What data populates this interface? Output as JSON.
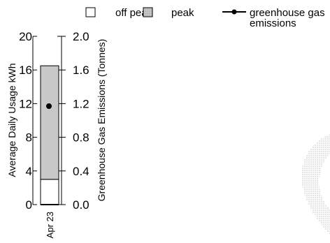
{
  "legend": {
    "off_peak_label": "off peak",
    "peak_label": "peak",
    "ghg_label_line1": "greenhouse gas",
    "ghg_label_line2": "emissions"
  },
  "colors": {
    "off_peak_fill": "#ffffff",
    "peak_fill": "#c8c8c8",
    "line": "#000000"
  },
  "chart_data": {
    "type": "bar",
    "categories": [
      "Apr 23"
    ],
    "series": [
      {
        "name": "off peak",
        "values": [
          3
        ]
      },
      {
        "name": "peak",
        "values": [
          13.5
        ]
      },
      {
        "name": "greenhouse gas emissions",
        "values": [
          1.17
        ],
        "axis": "right"
      }
    ],
    "stacked": true,
    "ylabel": "Average Daily Usage kWh",
    "y2label": "Greenhouse Gas Emissions (Tonnes)",
    "ylim": [
      0,
      20
    ],
    "y2lim": [
      0,
      2.0
    ],
    "yticks": [
      "0",
      "4",
      "8",
      "12",
      "16",
      "20"
    ],
    "y2ticks": [
      "0.0",
      "0.4",
      "0.8",
      "1.2",
      "1.6",
      "2.0"
    ],
    "grid": false,
    "legend_position": "top"
  }
}
